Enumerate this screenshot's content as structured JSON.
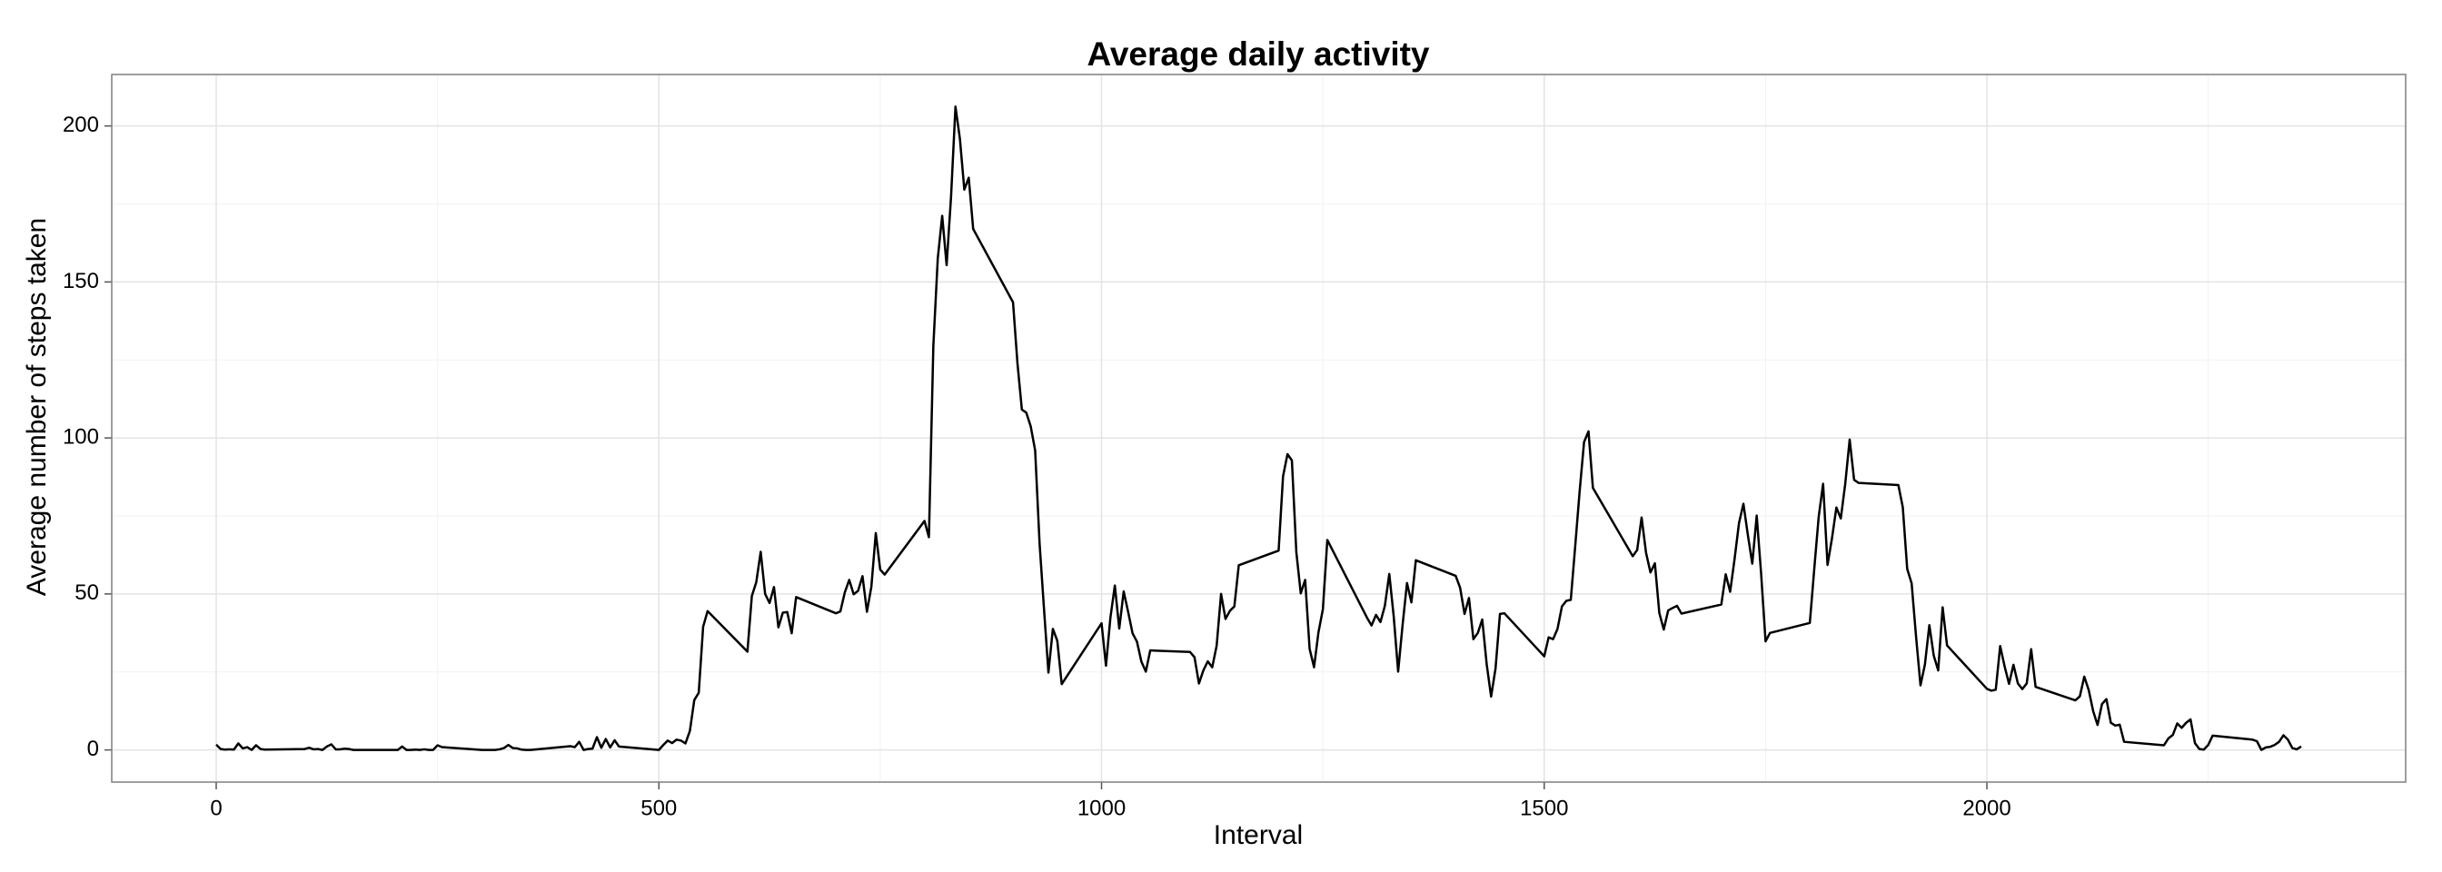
{
  "chart_data": {
    "type": "line",
    "title": "Average daily activity",
    "x_label": "Interval",
    "y_label": "Average number of steps taken",
    "color": "#000000",
    "grid": true,
    "xlim": [
      -118,
      2473
    ],
    "ylim": [
      -10.3,
      216.5
    ],
    "xticks": [
      0,
      500,
      1000,
      1500,
      2000
    ],
    "yticks": [
      0,
      50,
      100,
      150,
      200
    ],
    "x": [
      0,
      5,
      10,
      15,
      20,
      25,
      30,
      35,
      40,
      45,
      50,
      55,
      100,
      105,
      110,
      115,
      120,
      125,
      130,
      135,
      140,
      145,
      150,
      155,
      200,
      205,
      210,
      215,
      220,
      225,
      230,
      235,
      240,
      245,
      250,
      255,
      300,
      305,
      310,
      315,
      320,
      325,
      330,
      335,
      340,
      345,
      350,
      355,
      400,
      405,
      410,
      415,
      420,
      425,
      430,
      435,
      440,
      445,
      450,
      455,
      500,
      505,
      510,
      515,
      520,
      525,
      530,
      535,
      540,
      545,
      550,
      555,
      600,
      605,
      610,
      615,
      620,
      625,
      630,
      635,
      640,
      645,
      650,
      655,
      700,
      705,
      710,
      715,
      720,
      725,
      730,
      735,
      740,
      745,
      750,
      755,
      800,
      805,
      810,
      815,
      820,
      825,
      830,
      835,
      840,
      845,
      850,
      855,
      900,
      905,
      910,
      915,
      920,
      925,
      930,
      935,
      940,
      945,
      950,
      955,
      1000,
      1005,
      1010,
      1015,
      1020,
      1025,
      1030,
      1035,
      1040,
      1045,
      1050,
      1055,
      1100,
      1105,
      1110,
      1115,
      1120,
      1125,
      1130,
      1135,
      1140,
      1145,
      1150,
      1155,
      1200,
      1205,
      1210,
      1215,
      1220,
      1225,
      1230,
      1235,
      1240,
      1245,
      1250,
      1255,
      1300,
      1305,
      1310,
      1315,
      1320,
      1325,
      1330,
      1335,
      1340,
      1345,
      1350,
      1355,
      1400,
      1405,
      1410,
      1415,
      1420,
      1425,
      1430,
      1435,
      1440,
      1445,
      1450,
      1455,
      1500,
      1505,
      1510,
      1515,
      1520,
      1525,
      1530,
      1535,
      1540,
      1545,
      1550,
      1555,
      1600,
      1605,
      1610,
      1615,
      1620,
      1625,
      1630,
      1635,
      1640,
      1645,
      1650,
      1655,
      1700,
      1705,
      1710,
      1715,
      1720,
      1725,
      1730,
      1735,
      1740,
      1745,
      1750,
      1755,
      1800,
      1805,
      1810,
      1815,
      1820,
      1825,
      1830,
      1835,
      1840,
      1845,
      1850,
      1855,
      1900,
      1905,
      1910,
      1915,
      1920,
      1925,
      1930,
      1935,
      1940,
      1945,
      1950,
      1955,
      2000,
      2005,
      2010,
      2015,
      2020,
      2025,
      2030,
      2035,
      2040,
      2045,
      2050,
      2055,
      2100,
      2105,
      2110,
      2115,
      2120,
      2125,
      2130,
      2135,
      2140,
      2145,
      2150,
      2155,
      2200,
      2205,
      2210,
      2215,
      2220,
      2225,
      2230,
      2235,
      2240,
      2245,
      2250,
      2255,
      2300,
      2305,
      2310,
      2315,
      2320,
      2325,
      2330,
      2335,
      2340,
      2345,
      2350,
      2355
    ],
    "values": [
      1.7,
      0.3,
      0.1,
      0.2,
      0.1,
      2.1,
      0.5,
      0.9,
      0,
      1.5,
      0.3,
      0.1,
      0.3,
      0.7,
      0.2,
      0.3,
      0,
      1.1,
      1.8,
      0.2,
      0.2,
      0.4,
      0.3,
      0,
      0,
      0,
      1.1,
      0,
      0,
      0.1,
      0,
      0.2,
      0,
      0,
      1.5,
      0.9,
      0,
      0,
      0,
      0,
      0.2,
      0.6,
      1.6,
      0.6,
      0.5,
      0.1,
      0,
      0,
      1.2,
      0.9,
      2.6,
      0,
      0.3,
      0.4,
      4.1,
      0.7,
      3.5,
      0.8,
      3.1,
      1.1,
      0,
      1.6,
      3,
      2.2,
      3.3,
      3,
      2.1,
      6.1,
      16,
      18.3,
      39.5,
      44.5,
      31.5,
      49.3,
      53.8,
      63.5,
      50,
      47.1,
      52.2,
      39.3,
      44,
      44.2,
      37.4,
      49,
      43.8,
      44.4,
      50.5,
      54.5,
      49.9,
      51,
      55.7,
      44.3,
      52.3,
      69.5,
      57.8,
      56.2,
      73.4,
      68.2,
      129.4,
      157.5,
      171.2,
      155.4,
      177.3,
      206.2,
      195.9,
      179.6,
      183.4,
      167,
      143.5,
      124,
      109.1,
      108.1,
      103.7,
      96,
      66.2,
      45.2,
      24.8,
      38.8,
      35,
      21.1,
      40.6,
      27,
      42.4,
      52.7,
      38.9,
      50.8,
      44.3,
      37.4,
      34.7,
      28.3,
      25.1,
      31.9,
      31.4,
      29.7,
      21.3,
      25.5,
      28.4,
      26.5,
      33.4,
      50,
      42,
      44.6,
      46,
      59.2,
      63.9,
      87.7,
      94.8,
      92.8,
      63.4,
      50.2,
      54.5,
      32.4,
      26.5,
      37.7,
      45.1,
      67.3,
      42.3,
      39.9,
      43.3,
      41,
      46.2,
      56.4,
      42.8,
      25.1,
      40,
      53.5,
      47.3,
      60.8,
      55.8,
      52,
      43.6,
      48.7,
      35.5,
      37.5,
      41.8,
      27.5,
      17.1,
      26.1,
      43.6,
      43.8,
      30,
      36.1,
      35.5,
      38.8,
      46,
      47.8,
      48.1,
      65.3,
      82.9,
      98.7,
      102.1,
      84,
      62.1,
      64.1,
      74.5,
      63.2,
      56.9,
      59.8,
      43.9,
      38.6,
      44.7,
      45.5,
      46.2,
      43.7,
      46.6,
      56.3,
      50.7,
      61.2,
      72.7,
      78.9,
      68.9,
      59.7,
      75.1,
      56.5,
      34.8,
      37.5,
      40.7,
      58,
      74.7,
      85.3,
      59.3,
      67.8,
      77.7,
      74.2,
      85.3,
      99.5,
      86.6,
      85.6,
      84.9,
      77.8,
      58,
      53.4,
      36.3,
      20.7,
      27.4,
      40,
      30.2,
      25.5,
      45.7,
      33.5,
      19.6,
      19,
      19.3,
      33.3,
      26.8,
      21.2,
      27.3,
      21.3,
      19.5,
      21.3,
      32.3,
      20.2,
      15.9,
      17.2,
      23.5,
      19.2,
      12.5,
      8,
      14.7,
      16.3,
      8.7,
      7.8,
      8.1,
      2.6,
      1.5,
      3.7,
      4.8,
      8.5,
      7.1,
      8.7,
      9.8,
      2.2,
      0.3,
      0.1,
      1.6,
      4.6,
      3.3,
      2.8,
      0,
      0.8,
      1,
      1.6,
      2.6,
      4.7,
      3.3,
      0.6,
      0.2,
      1.1
    ]
  }
}
